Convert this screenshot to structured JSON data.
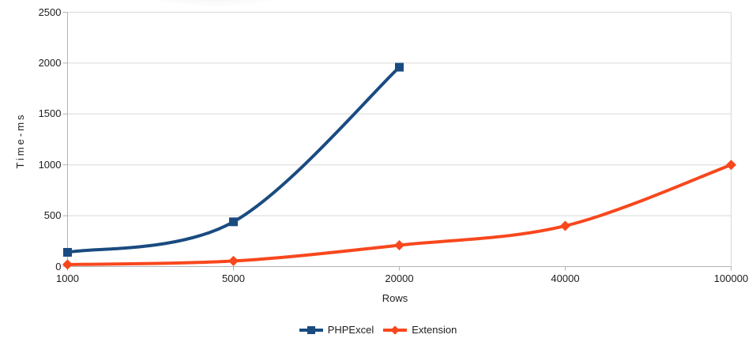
{
  "chart_data": {
    "type": "line",
    "title": "",
    "xlabel": "Rows",
    "ylabel": "Time-ms",
    "categories": [
      "1000",
      "5000",
      "20000",
      "40000",
      "100000"
    ],
    "y_ticks": [
      "0",
      "500",
      "1000",
      "1500",
      "2000",
      "2500"
    ],
    "ylim": [
      0,
      2500
    ],
    "grid": "horizontal-gridlines-on",
    "legend_position": "bottom-center",
    "line_style": "smooth",
    "series": [
      {
        "name": "PHPExcel",
        "color": "#1A4B80",
        "marker": "square",
        "values": [
          140,
          440,
          1960,
          null,
          null
        ]
      },
      {
        "name": "Extension",
        "color": "#F8471D",
        "marker": "diamond",
        "values": [
          20,
          55,
          210,
          400,
          1000
        ]
      }
    ]
  },
  "style_colors": {
    "gridline": "#d9d9d9",
    "axis": "#b2b2b2",
    "text": "#1d1d1d",
    "background": "#ffffff"
  }
}
